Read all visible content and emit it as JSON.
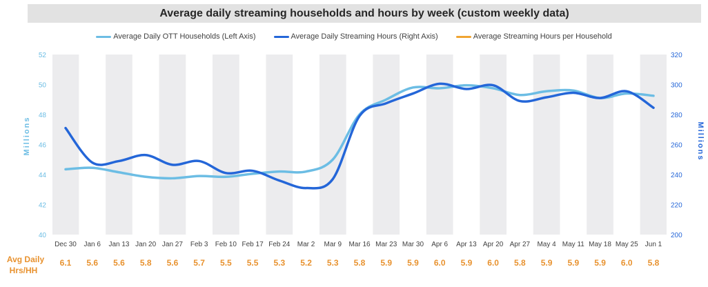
{
  "chart_data": {
    "type": "line",
    "title": "Average daily streaming households and hours by week (custom weekly data)",
    "categories": [
      "Dec 30",
      "Jan 6",
      "Jan 13",
      "Jan 20",
      "Jan 27",
      "Feb 3",
      "Feb 10",
      "Feb 17",
      "Feb 24",
      "Mar 2",
      "Mar 9",
      "Mar 16",
      "Mar 23",
      "Mar 30",
      "Apr 6",
      "Apr 13",
      "Apr 20",
      "Apr 27",
      "May 4",
      "May 11",
      "May 18",
      "May 25",
      "Jun 1"
    ],
    "y_left": {
      "label": "Millions",
      "ylim": [
        40,
        52
      ],
      "ticks": [
        "40",
        "42",
        "44",
        "46",
        "48",
        "50",
        "52"
      ]
    },
    "y_right": {
      "label": "Millions",
      "ylim": [
        200,
        320
      ],
      "ticks": [
        "200",
        "220",
        "240",
        "260",
        "280",
        "300",
        "320"
      ]
    },
    "series": [
      {
        "name": "Average Daily OTT Households (Left Axis)",
        "axis": "left",
        "color": "#6cbde4",
        "values": [
          44.35,
          44.45,
          44.15,
          43.85,
          43.75,
          43.9,
          43.85,
          44.05,
          44.2,
          44.2,
          45.0,
          48.0,
          49.0,
          49.8,
          49.75,
          49.95,
          49.75,
          49.3,
          49.55,
          49.6,
          49.1,
          49.4,
          49.25
        ]
      },
      {
        "name": "Average Daily Streaming Hours (Right Axis)",
        "axis": "right",
        "color": "#2466d8",
        "values": [
          271,
          248,
          249,
          253,
          246.5,
          249,
          241,
          242.5,
          236,
          231,
          237,
          279,
          287.5,
          294,
          300.5,
          297,
          299.5,
          289,
          291.5,
          294.5,
          291,
          295.5,
          284.5
        ]
      },
      {
        "name": "Average Streaming Hours per Household",
        "axis": "none",
        "color": "#f0a431",
        "values": [
          "6.1",
          "5.6",
          "5.6",
          "5.8",
          "5.6",
          "5.7",
          "5.5",
          "5.5",
          "5.3",
          "5.2",
          "5.3",
          "5.8",
          "5.9",
          "5.9",
          "6.0",
          "5.9",
          "6.0",
          "5.8",
          "5.9",
          "5.9",
          "5.9",
          "6.0",
          "5.8"
        ]
      }
    ],
    "bottom_row_label": [
      "Avg Daily",
      "Hrs/HH"
    ],
    "grid": "alternating vertical bands",
    "legend": "top-center"
  },
  "colors": {
    "band": "#ececee",
    "left_axis": "#6cbde4",
    "right_axis": "#2466d8",
    "ratio": "#e8922f"
  }
}
